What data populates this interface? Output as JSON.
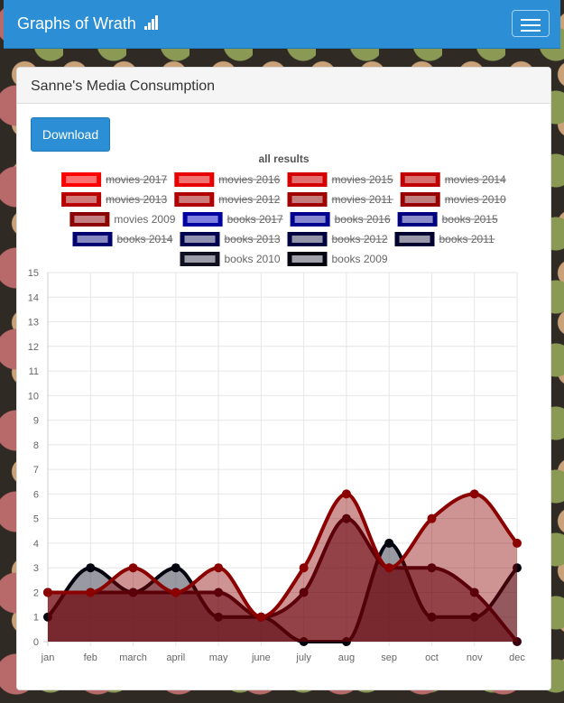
{
  "navbar": {
    "brand": "Graphs of Wrath",
    "brand_icon": "signal-bars-icon",
    "menu_icon": "hamburger-menu-icon"
  },
  "panel": {
    "title": "Sanne's Media Consumption",
    "download_label": "Download"
  },
  "colors": {
    "brand": "#2c8fd6",
    "movies": "#8b0000",
    "books": "#0a0a2a"
  },
  "chart_data": {
    "type": "area",
    "title": "all results",
    "categories": [
      "jan",
      "feb",
      "march",
      "april",
      "may",
      "june",
      "july",
      "aug",
      "sep",
      "oct",
      "nov",
      "dec"
    ],
    "ylim": [
      0,
      15
    ],
    "yticks": [
      0,
      1,
      2,
      3,
      4,
      5,
      6,
      7,
      8,
      9,
      10,
      11,
      12,
      13,
      14,
      15
    ],
    "grid": true,
    "legend": [
      {
        "name": "movies 2017",
        "visible": false,
        "stroke": "#ff0000",
        "fill": "#ff7070"
      },
      {
        "name": "movies 2016",
        "visible": false,
        "stroke": "#e80000",
        "fill": "#f27272"
      },
      {
        "name": "movies 2015",
        "visible": false,
        "stroke": "#d40000",
        "fill": "#e27070"
      },
      {
        "name": "movies 2014",
        "visible": false,
        "stroke": "#c00000",
        "fill": "#d87070"
      },
      {
        "name": "movies 2013",
        "visible": false,
        "stroke": "#b80000",
        "fill": "#d07a7a"
      },
      {
        "name": "movies 2012",
        "visible": false,
        "stroke": "#b00000",
        "fill": "#cc7a7a"
      },
      {
        "name": "movies 2011",
        "visible": false,
        "stroke": "#a00000",
        "fill": "#c47c7c"
      },
      {
        "name": "movies 2010",
        "visible": false,
        "stroke": "#980000",
        "fill": "#c08080"
      },
      {
        "name": "movies 2009",
        "visible": true,
        "stroke": "#8b0000",
        "fill": "#c47e82"
      },
      {
        "name": "books 2017",
        "visible": false,
        "stroke": "#0000a0",
        "fill": "#8080e0"
      },
      {
        "name": "books 2016",
        "visible": false,
        "stroke": "#000090",
        "fill": "#8888d0"
      },
      {
        "name": "books 2015",
        "visible": false,
        "stroke": "#000080",
        "fill": "#8c8cc8"
      },
      {
        "name": "books 2014",
        "visible": false,
        "stroke": "#000070",
        "fill": "#8888c0"
      },
      {
        "name": "books 2013",
        "visible": false,
        "stroke": "#000050",
        "fill": "#9090b0"
      },
      {
        "name": "books 2012",
        "visible": false,
        "stroke": "#000040",
        "fill": "#9494a8"
      },
      {
        "name": "books 2011",
        "visible": false,
        "stroke": "#000030",
        "fill": "#9898a8"
      },
      {
        "name": "books 2010",
        "visible": true,
        "stroke": "#101020",
        "fill": "#9c9ca8"
      },
      {
        "name": "books 2009",
        "visible": true,
        "stroke": "#050510",
        "fill": "#a0a0aa"
      }
    ],
    "series": [
      {
        "name": "books 2009",
        "stroke": "#050510",
        "fill": "rgba(70,70,85,0.55)",
        "values": [
          1,
          3,
          2,
          3,
          1,
          1,
          0,
          0,
          4,
          1,
          1,
          3
        ]
      },
      {
        "name": "books 2010",
        "stroke": "#3a0010",
        "fill": "rgba(70,0,15,0.55)",
        "values": [
          2,
          2,
          2,
          2,
          2,
          1,
          2,
          5,
          3,
          3,
          2,
          0
        ]
      },
      {
        "name": "movies 2009",
        "stroke": "#8b0000",
        "fill": "rgba(139,0,0,0.42)",
        "values": [
          2,
          2,
          3,
          2,
          3,
          1,
          3,
          6,
          3,
          5,
          6,
          4
        ]
      }
    ]
  }
}
